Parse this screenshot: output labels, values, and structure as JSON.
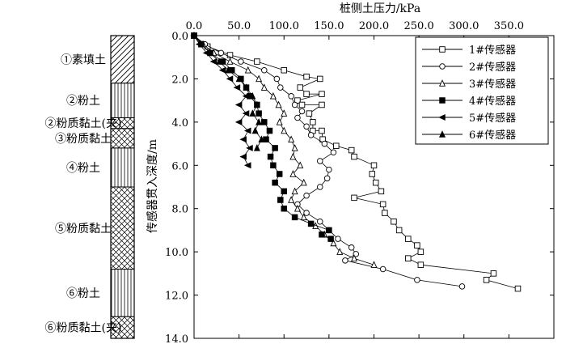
{
  "soil_column": {
    "layers": [
      {
        "label": "①素填土",
        "top": 0.0,
        "bottom": 2.2,
        "pattern": "diagonal"
      },
      {
        "label": "②粉土",
        "top": 2.2,
        "bottom": 3.8,
        "pattern": "vertical"
      },
      {
        "label": "②粉质黏土(夹)",
        "top": 3.8,
        "bottom": 4.3,
        "pattern": "cross"
      },
      {
        "label": "③粉质黏土",
        "top": 4.3,
        "bottom": 5.2,
        "pattern": "cross"
      },
      {
        "label": "④粉土",
        "top": 5.2,
        "bottom": 7.0,
        "pattern": "vertical"
      },
      {
        "label": "⑤粉质黏土",
        "top": 7.0,
        "bottom": 10.8,
        "pattern": "cross"
      },
      {
        "label": "⑥粉土",
        "top": 10.8,
        "bottom": 13.0,
        "pattern": "vertical"
      },
      {
        "label": "⑥粉质黏土(夹)",
        "top": 13.0,
        "bottom": 14.0,
        "pattern": "cross"
      }
    ]
  },
  "chart_data": {
    "type": "line",
    "title": "",
    "xlabel": "桩侧土压力/kPa",
    "ylabel": "传感器贯入深度/m",
    "xlim": [
      0,
      400
    ],
    "ylim": [
      0,
      14
    ],
    "x_axis_position": "top",
    "y_inverted": true,
    "xticks": [
      "0.0",
      "50.0",
      "100.0",
      "150.0",
      "200.0",
      "250.0",
      "300.0",
      "350.0"
    ],
    "yticks": [
      "0.0",
      "2.0",
      "4.0",
      "6.0",
      "8.0",
      "10.0",
      "12.0",
      "14.0"
    ],
    "grid": false,
    "legend_position": "top-right",
    "series": [
      {
        "name": "1#传感器",
        "marker": "square-open",
        "points": [
          [
            0,
            0
          ],
          [
            15,
            0.5
          ],
          [
            40,
            0.9
          ],
          [
            70,
            1.2
          ],
          [
            100,
            1.6
          ],
          [
            125,
            1.9
          ],
          [
            140,
            2.0
          ],
          [
            118,
            2.4
          ],
          [
            125,
            2.7
          ],
          [
            142,
            2.7
          ],
          [
            115,
            3.0
          ],
          [
            120,
            3.2
          ],
          [
            142,
            3.2
          ],
          [
            128,
            3.6
          ],
          [
            132,
            4.0
          ],
          [
            132,
            4.4
          ],
          [
            142,
            4.4
          ],
          [
            143,
            4.8
          ],
          [
            158,
            5.1
          ],
          [
            175,
            5.3
          ],
          [
            178,
            5.6
          ],
          [
            200,
            6.0
          ],
          [
            198,
            6.4
          ],
          [
            202,
            6.8
          ],
          [
            208,
            7.2
          ],
          [
            178,
            7.5
          ],
          [
            210,
            7.8
          ],
          [
            212,
            8.2
          ],
          [
            222,
            8.6
          ],
          [
            228,
            9.0
          ],
          [
            238,
            9.4
          ],
          [
            248,
            9.7
          ],
          [
            252,
            10.0
          ],
          [
            238,
            10.3
          ],
          [
            252,
            10.6
          ],
          [
            333,
            11.0
          ],
          [
            325,
            11.3
          ],
          [
            360,
            11.7
          ]
        ]
      },
      {
        "name": "2#传感器",
        "marker": "circle-open",
        "points": [
          [
            0,
            0
          ],
          [
            12,
            0.4
          ],
          [
            30,
            0.8
          ],
          [
            52,
            1.2
          ],
          [
            78,
            1.6
          ],
          [
            92,
            2.0
          ],
          [
            96,
            2.4
          ],
          [
            108,
            2.8
          ],
          [
            112,
            3.2
          ],
          [
            120,
            3.5
          ],
          [
            115,
            3.8
          ],
          [
            125,
            4.2
          ],
          [
            130,
            4.6
          ],
          [
            145,
            5.0
          ],
          [
            155,
            5.4
          ],
          [
            140,
            5.8
          ],
          [
            150,
            6.2
          ],
          [
            148,
            6.6
          ],
          [
            140,
            7.0
          ],
          [
            125,
            7.4
          ],
          [
            115,
            7.8
          ],
          [
            125,
            8.2
          ],
          [
            140,
            8.6
          ],
          [
            150,
            9.0
          ],
          [
            160,
            9.4
          ],
          [
            175,
            9.8
          ],
          [
            180,
            10.1
          ],
          [
            168,
            10.4
          ],
          [
            210,
            10.8
          ],
          [
            248,
            11.3
          ],
          [
            298,
            11.6
          ]
        ]
      },
      {
        "name": "3#传感器",
        "marker": "triangle-open",
        "points": [
          [
            0,
            0
          ],
          [
            10,
            0.4
          ],
          [
            22,
            0.8
          ],
          [
            40,
            1.2
          ],
          [
            60,
            1.6
          ],
          [
            72,
            2.0
          ],
          [
            78,
            2.4
          ],
          [
            88,
            2.8
          ],
          [
            94,
            3.2
          ],
          [
            100,
            3.6
          ],
          [
            95,
            4.0
          ],
          [
            100,
            4.4
          ],
          [
            108,
            4.8
          ],
          [
            112,
            5.2
          ],
          [
            110,
            5.6
          ],
          [
            118,
            6.0
          ],
          [
            110,
            6.4
          ],
          [
            122,
            6.8
          ],
          [
            112,
            7.2
          ],
          [
            108,
            7.6
          ],
          [
            115,
            8.0
          ],
          [
            122,
            8.4
          ],
          [
            135,
            8.8
          ],
          [
            145,
            9.2
          ],
          [
            155,
            9.6
          ],
          [
            162,
            10.0
          ],
          [
            178,
            10.3
          ],
          [
            200,
            10.6
          ]
        ]
      },
      {
        "name": "4#传感器",
        "marker": "square-filled",
        "points": [
          [
            0,
            0
          ],
          [
            8,
            0.4
          ],
          [
            18,
            0.8
          ],
          [
            32,
            1.2
          ],
          [
            42,
            1.6
          ],
          [
            52,
            2.0
          ],
          [
            58,
            2.4
          ],
          [
            62,
            2.8
          ],
          [
            70,
            3.2
          ],
          [
            72,
            3.6
          ],
          [
            78,
            4.0
          ],
          [
            84,
            4.4
          ],
          [
            80,
            4.8
          ],
          [
            90,
            5.2
          ],
          [
            85,
            5.6
          ],
          [
            88,
            6.0
          ],
          [
            95,
            6.4
          ],
          [
            90,
            6.8
          ],
          [
            100,
            7.2
          ],
          [
            96,
            7.6
          ],
          [
            100,
            8.0
          ],
          [
            112,
            8.4
          ],
          [
            130,
            8.7
          ],
          [
            150,
            9.0
          ],
          [
            142,
            9.2
          ],
          [
            152,
            9.4
          ]
        ]
      },
      {
        "name": "5#传感器",
        "marker": "triangle-left-filled",
        "points": [
          [
            0,
            0
          ],
          [
            6,
            0.4
          ],
          [
            14,
            0.8
          ],
          [
            22,
            1.2
          ],
          [
            32,
            1.6
          ],
          [
            40,
            2.0
          ],
          [
            48,
            2.4
          ],
          [
            58,
            2.8
          ],
          [
            50,
            3.2
          ],
          [
            58,
            3.6
          ],
          [
            50,
            4.0
          ],
          [
            60,
            4.4
          ],
          [
            55,
            4.8
          ],
          [
            62,
            5.2
          ],
          [
            55,
            5.6
          ],
          [
            60,
            6.0
          ]
        ]
      },
      {
        "name": "6#传感器",
        "marker": "triangle-filled",
        "points": [
          [
            0,
            0
          ],
          [
            8,
            0.4
          ],
          [
            18,
            0.8
          ],
          [
            28,
            1.2
          ],
          [
            38,
            1.6
          ],
          [
            50,
            2.0
          ],
          [
            58,
            2.4
          ],
          [
            65,
            2.8
          ],
          [
            70,
            3.2
          ],
          [
            65,
            3.6
          ],
          [
            72,
            4.0
          ],
          [
            68,
            4.4
          ],
          [
            75,
            4.8
          ],
          [
            70,
            5.2
          ]
        ]
      }
    ]
  }
}
